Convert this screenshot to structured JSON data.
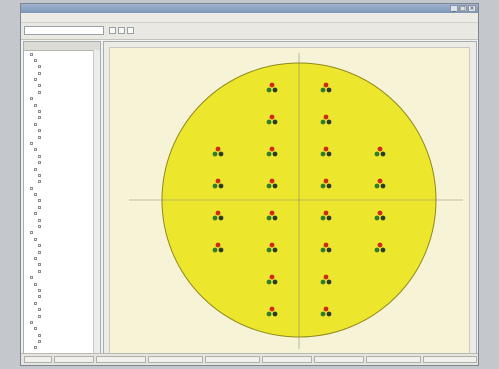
{
  "colors": {
    "wafer_fill": "#ece72c",
    "wafer_stroke": "#8f8a1a",
    "plot_bg": "#f7f3d6",
    "axis_line": "#8a8a7a",
    "dot_red": "#d2261e",
    "dot_green": "#2f7f2a",
    "dot_dark": "#2a3d2a"
  },
  "icons": {
    "minimize": "minimize-icon",
    "maximize": "maximize-icon",
    "close": "close-icon",
    "marker": "die-marker-icon"
  },
  "wafer_map": {
    "groups": [
      {
        "x": -1,
        "y": 4
      },
      {
        "x": 1,
        "y": 4
      },
      {
        "x": -1,
        "y": 3
      },
      {
        "x": 1,
        "y": 3
      },
      {
        "x": -3,
        "y": 2
      },
      {
        "x": -1,
        "y": 2
      },
      {
        "x": 1,
        "y": 2
      },
      {
        "x": 3,
        "y": 2
      },
      {
        "x": -3,
        "y": 1
      },
      {
        "x": -1,
        "y": 1
      },
      {
        "x": 1,
        "y": 1
      },
      {
        "x": 3,
        "y": 1
      },
      {
        "x": -3,
        "y": -1
      },
      {
        "x": -1,
        "y": -1
      },
      {
        "x": 1,
        "y": -1
      },
      {
        "x": 3,
        "y": -1
      },
      {
        "x": -3,
        "y": -2
      },
      {
        "x": -1,
        "y": -2
      },
      {
        "x": 1,
        "y": -2
      },
      {
        "x": 3,
        "y": -2
      },
      {
        "x": -1,
        "y": -3
      },
      {
        "x": 1,
        "y": -3
      },
      {
        "x": -1,
        "y": -4
      },
      {
        "x": 1,
        "y": -4
      }
    ]
  }
}
